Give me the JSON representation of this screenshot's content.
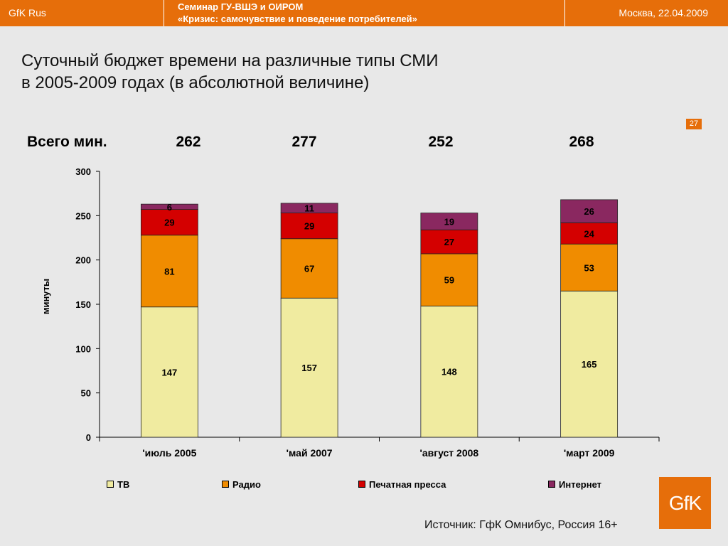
{
  "header": {
    "brand": "GfK Rus",
    "seminar_line1": "Семинар ГУ-ВШЭ и ОИРОМ",
    "seminar_line2": "«Кризис: самочувствие и поведение потребителей»",
    "location_date": "Москва, 22.04.2009"
  },
  "title_line1": "Суточный бюджет времени на различные типы СМИ",
  "title_line2": "в 2005-2009 годах (в абсолютной величине)",
  "page_number": "27",
  "totals": {
    "label": "Всего мин.",
    "values": [
      "262",
      "277",
      "252",
      "268"
    ]
  },
  "source": "Источник: ГфК Омнибус, Россия 16+",
  "logo_text": "GfK",
  "chart_data": {
    "type": "bar",
    "stacked": true,
    "categories": [
      "'июль 2005",
      "'май 2007",
      "'август 2008",
      "'март 2009"
    ],
    "series": [
      {
        "name": "ТВ",
        "values": [
          147,
          157,
          148,
          165
        ],
        "color": "#f0eba0"
      },
      {
        "name": "Радио",
        "values": [
          81,
          67,
          59,
          53
        ],
        "color": "#f08c00"
      },
      {
        "name": "Печатная пресса",
        "values": [
          29,
          29,
          27,
          24
        ],
        "color": "#d40000"
      },
      {
        "name": "Интернет",
        "values": [
          6,
          11,
          19,
          26
        ],
        "color": "#8a2860"
      }
    ],
    "ylabel": "минуты",
    "ylim": [
      0,
      300
    ],
    "yticks": [
      0,
      50,
      100,
      150,
      200,
      250,
      300
    ],
    "grid": false,
    "legend": "bottom"
  }
}
